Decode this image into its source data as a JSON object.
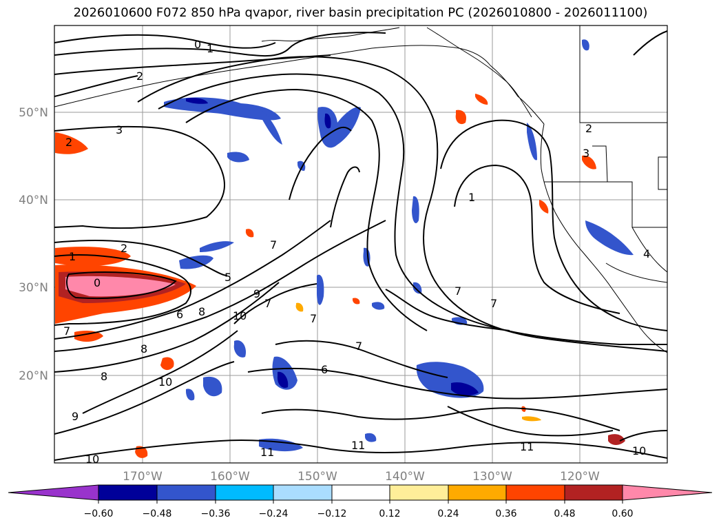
{
  "title": "2026010600 F072 850 hPa qvapor, river basin precipitation PC (2026010800 - 2026011100)",
  "latitude_labels": [
    "50°N",
    "40°N",
    "30°N",
    "20°N"
  ],
  "longitude_labels": [
    "170°W",
    "160°W",
    "150°W",
    "140°W",
    "130°W",
    "120°W"
  ],
  "contour_labels": [
    "0",
    "1",
    "2",
    "3",
    "2",
    "1",
    "2",
    "0",
    "7",
    "5",
    "6",
    "8",
    "10",
    "9",
    "7",
    "7",
    "8",
    "10",
    "8",
    "9",
    "10",
    "11",
    "11",
    "11",
    "10",
    "6",
    "7",
    "7",
    "7",
    "7",
    "1",
    "4",
    "3",
    "2"
  ],
  "colorbar": {
    "colors": [
      "#9933cc",
      "#000099",
      "#3355cc",
      "#00bbff",
      "#aaddff",
      "#ffffff",
      "#ffee99",
      "#ffaa00",
      "#ff4400",
      "#b22222",
      "#ff88aa"
    ],
    "ticks": [
      "−0.60",
      "−0.48",
      "−0.36",
      "−0.24",
      "−0.12",
      "0.12",
      "0.24",
      "0.36",
      "0.48",
      "0.60"
    ]
  }
}
